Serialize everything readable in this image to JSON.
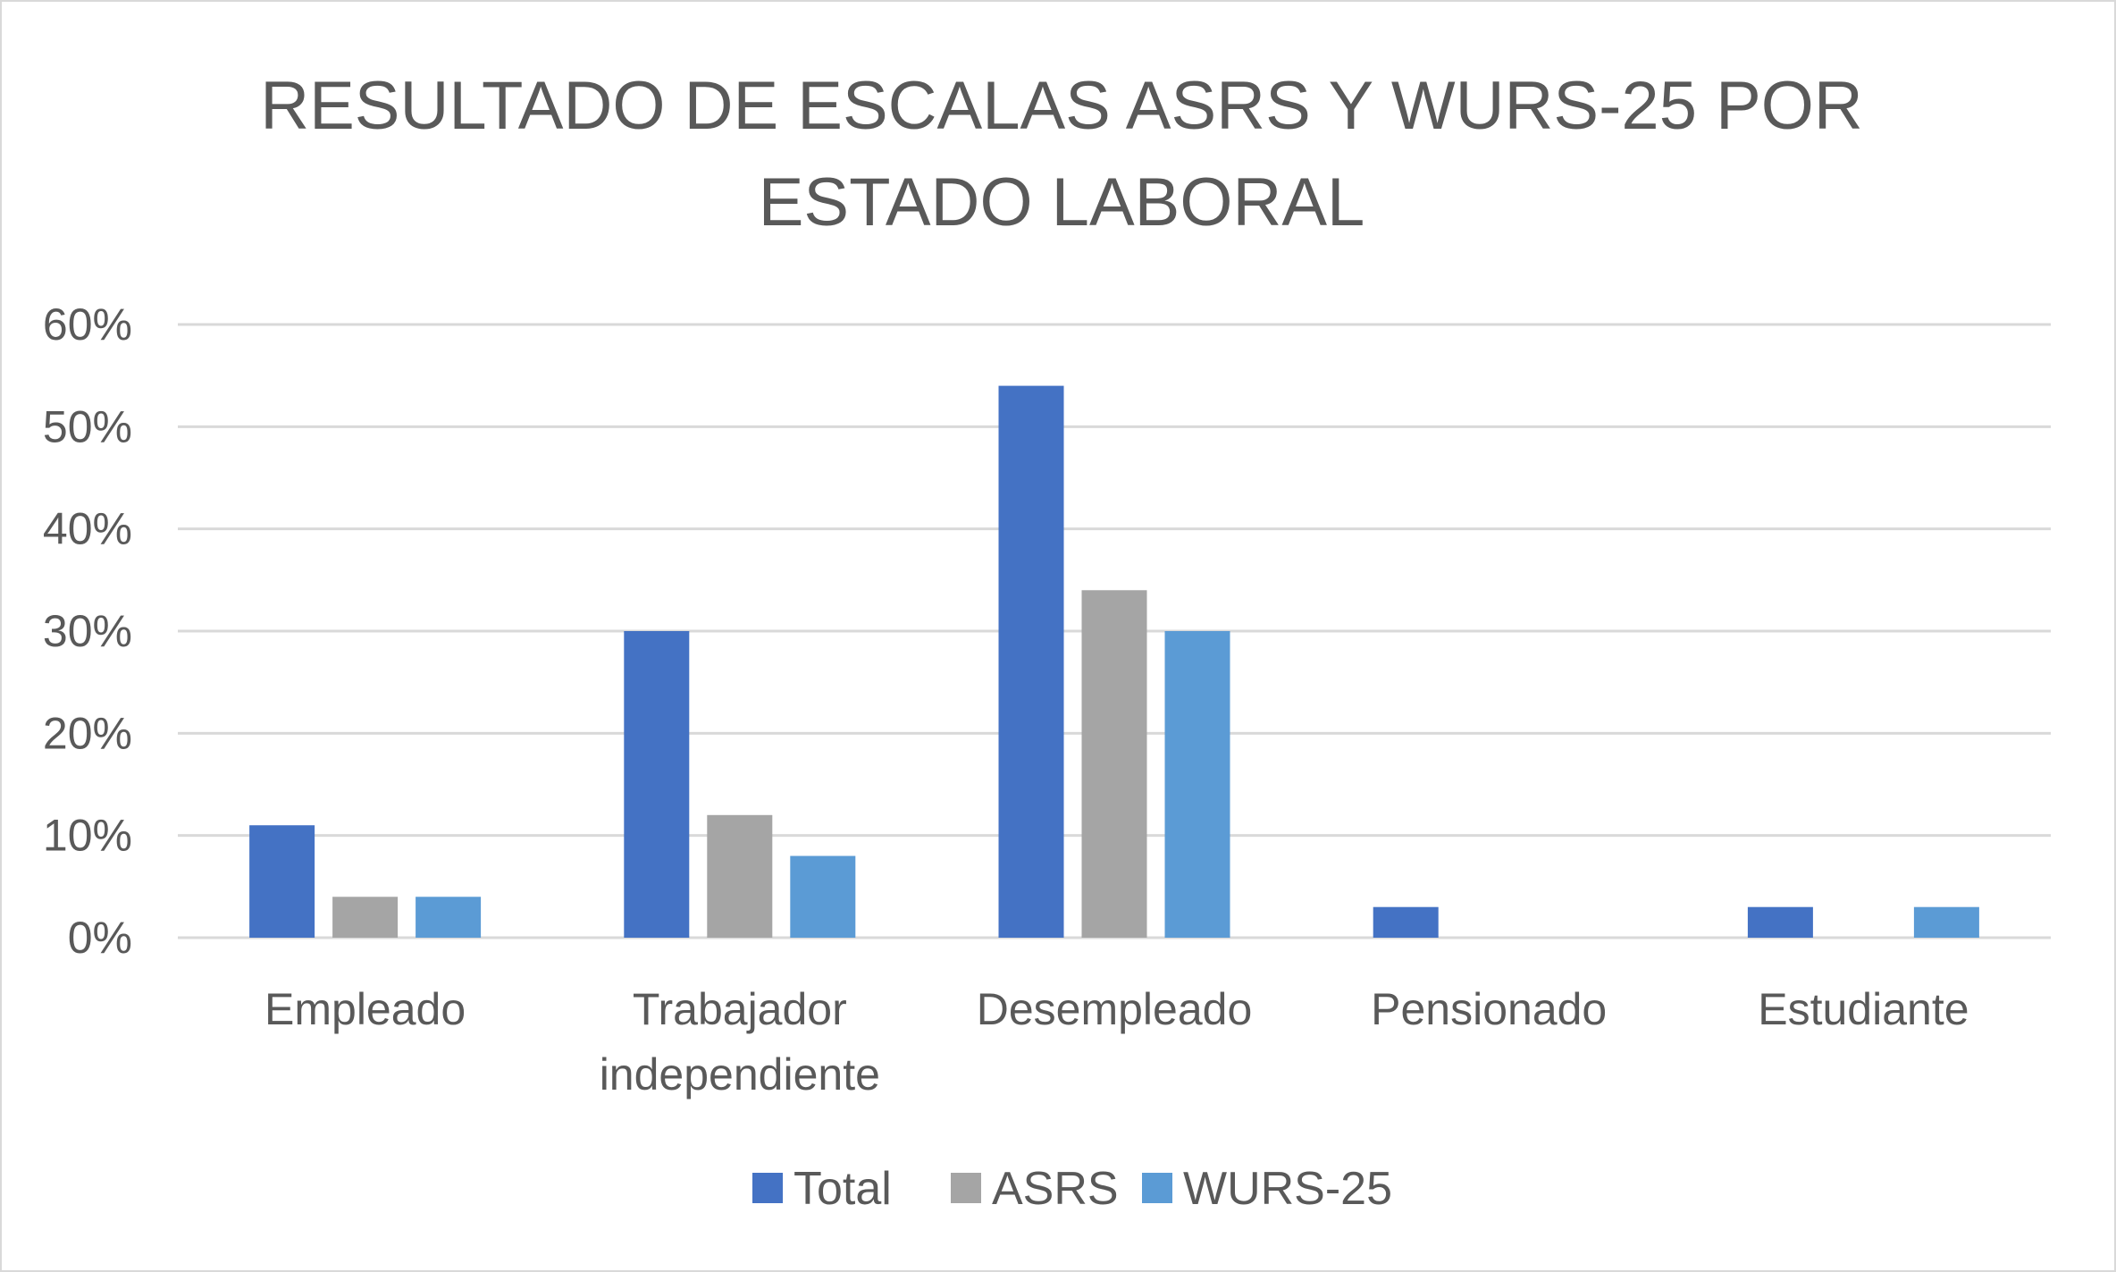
{
  "chart_data": {
    "type": "bar",
    "title_lines": [
      "RESULTADO DE ESCALAS ASRS Y WURS-25 POR",
      "ESTADO LABORAL"
    ],
    "categories": [
      [
        "Empleado"
      ],
      [
        "Trabajador",
        "independiente"
      ],
      [
        "Desempleado"
      ],
      [
        "Pensionado"
      ],
      [
        "Estudiante"
      ]
    ],
    "series": [
      {
        "name": "Total",
        "color": "#4472c4",
        "values": [
          11,
          30,
          54,
          3,
          3
        ]
      },
      {
        "name": "ASRS",
        "color": "#a5a5a5",
        "values": [
          4,
          12,
          34,
          0,
          0
        ]
      },
      {
        "name": "WURS-25",
        "color": "#5b9bd5",
        "values": [
          4,
          8,
          30,
          0,
          3
        ]
      }
    ],
    "y_ticks": [
      "0%",
      "10%",
      "20%",
      "30%",
      "40%",
      "50%",
      "60%"
    ],
    "ylim": [
      0,
      60
    ],
    "grid": true,
    "legend_position": "bottom"
  }
}
